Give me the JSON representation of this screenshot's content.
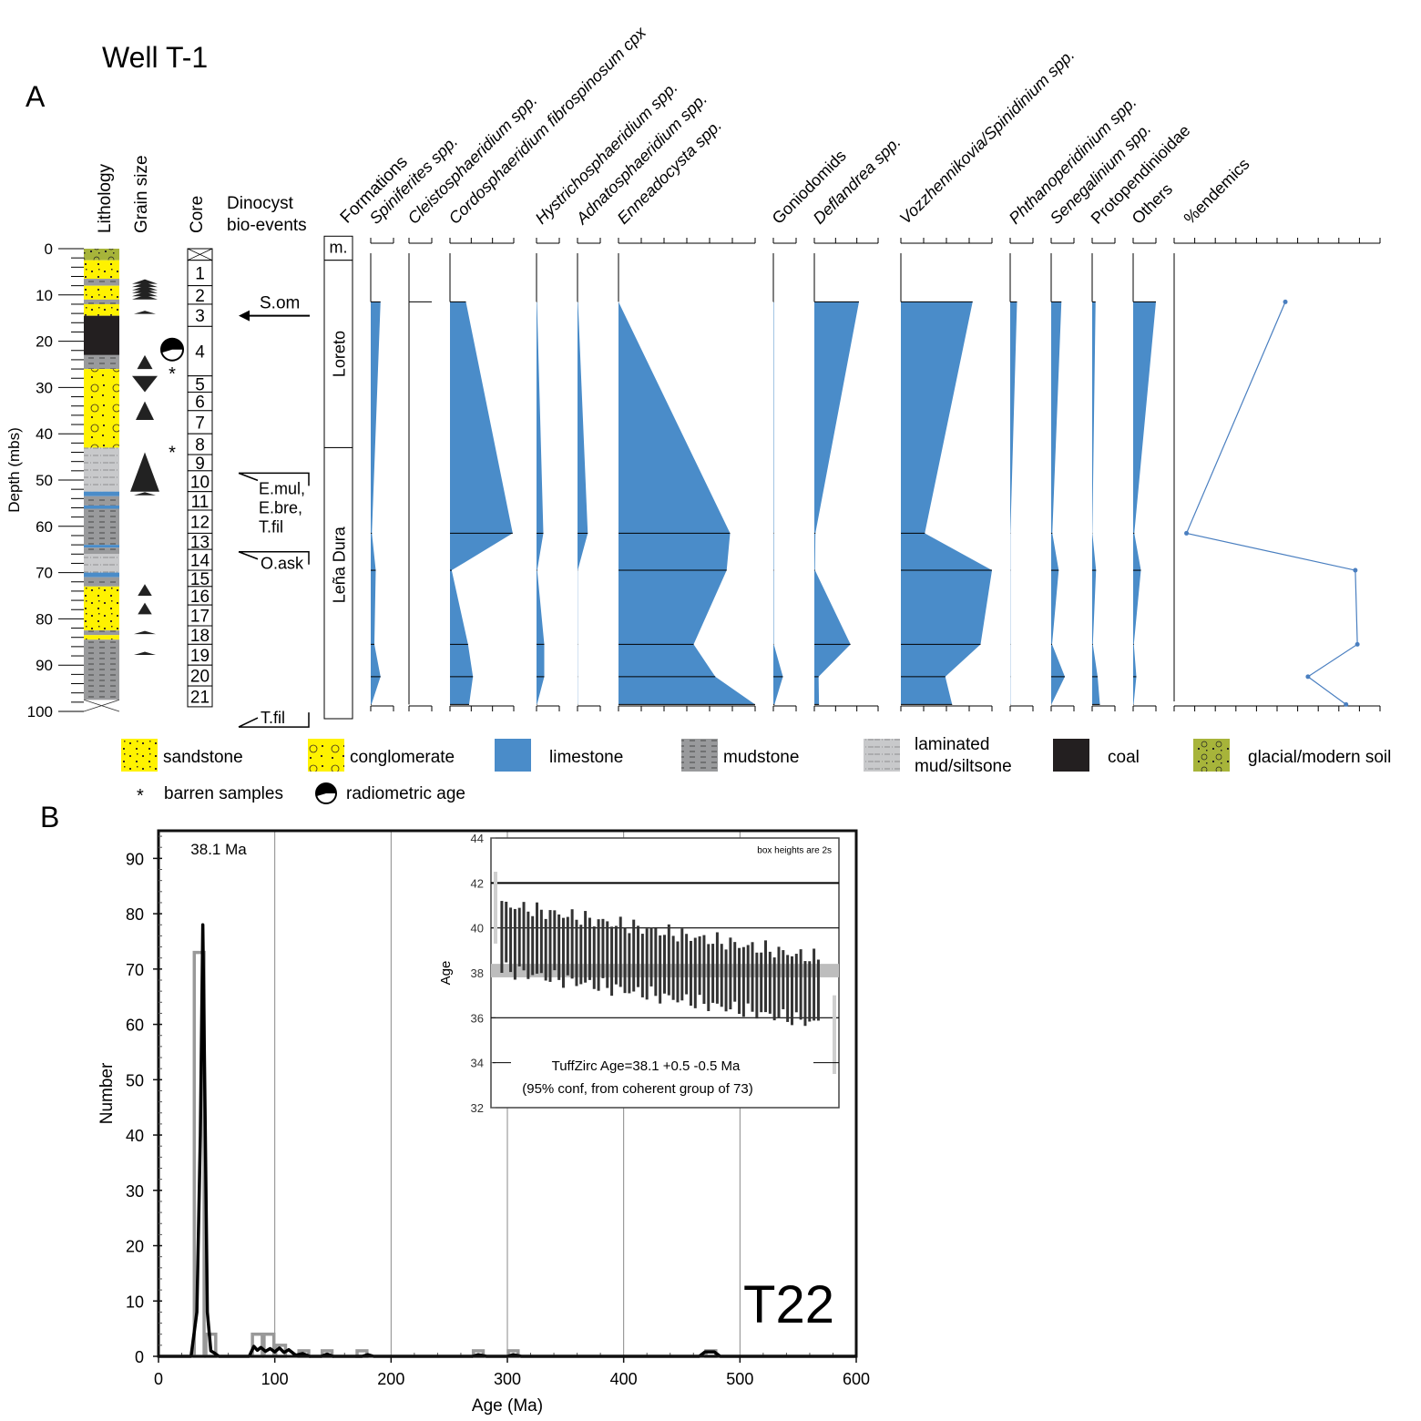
{
  "title": "Well T-1",
  "panel_a_label": "A",
  "panel_b_label": "B",
  "colors": {
    "taxa_fill": "#4a8cc9",
    "sandstone": "#fff200",
    "conglomerate": "#fff200",
    "limestone": "#4a8cc9",
    "mudstone": "#999a9c",
    "laminated": "#c8c9cb",
    "coal": "#231f20",
    "glacial_soil": "#a7b43a",
    "endemics_line": "#4a7fc0",
    "hist_gray": "#999999",
    "curve_black": "#000000",
    "bar_dark": "#333333"
  },
  "chart_data": [
    {
      "type": "area",
      "title": "Well T-1",
      "ylabel": "Depth (mbs)",
      "ylim": [
        0,
        100
      ],
      "yticks": [
        0,
        10,
        20,
        30,
        40,
        50,
        60,
        70,
        80,
        90,
        100
      ],
      "column_headers": {
        "lithology": "Lithology",
        "grain_size": "Grain size",
        "core": "Core",
        "bioevents": "Dinocyst bio-events",
        "bioevents_line1": "Dinocyst",
        "bioevents_line2": "bio-events",
        "formations": "Formations"
      },
      "lithology": [
        {
          "top": 0,
          "base": 2.5,
          "type": "glacial_soil"
        },
        {
          "top": 2.5,
          "base": 6.5,
          "type": "sandstone"
        },
        {
          "top": 6.5,
          "base": 8,
          "type": "mudstone"
        },
        {
          "top": 8,
          "base": 11,
          "type": "sandstone"
        },
        {
          "top": 11,
          "base": 12,
          "type": "mudstone"
        },
        {
          "top": 12,
          "base": 14.5,
          "type": "sandstone"
        },
        {
          "top": 14.5,
          "base": 23,
          "type": "coal"
        },
        {
          "top": 23,
          "base": 26,
          "type": "mudstone"
        },
        {
          "top": 26,
          "base": 43,
          "type": "conglomerate"
        },
        {
          "top": 43,
          "base": 52.5,
          "type": "laminated"
        },
        {
          "top": 52.5,
          "base": 53.5,
          "type": "limestone"
        },
        {
          "top": 53.5,
          "base": 55.5,
          "type": "mudstone"
        },
        {
          "top": 55.5,
          "base": 56.2,
          "type": "limestone"
        },
        {
          "top": 56.2,
          "base": 64,
          "type": "mudstone"
        },
        {
          "top": 64,
          "base": 64.6,
          "type": "limestone"
        },
        {
          "top": 64.6,
          "base": 66,
          "type": "mudstone"
        },
        {
          "top": 66,
          "base": 70,
          "type": "laminated"
        },
        {
          "top": 70,
          "base": 71,
          "type": "limestone"
        },
        {
          "top": 71,
          "base": 73,
          "type": "mudstone"
        },
        {
          "top": 73,
          "base": 82.5,
          "type": "sandstone"
        },
        {
          "top": 82.5,
          "base": 83.5,
          "type": "mudstone"
        },
        {
          "top": 83.5,
          "base": 84.5,
          "type": "sandstone"
        },
        {
          "top": 84.5,
          "base": 97.5,
          "type": "mudstone"
        }
      ],
      "grain_size": [
        {
          "depth": 8,
          "size": 0.6,
          "shape": "stack"
        },
        {
          "depth": 10,
          "size": 0.6,
          "shape": "stack"
        },
        {
          "depth": 13.8,
          "size": 0.35,
          "shape": "sliver"
        },
        {
          "top": 23,
          "base": 26,
          "shape": "up"
        },
        {
          "top": 27.5,
          "base": 31,
          "shape": "down"
        },
        {
          "top": 33,
          "base": 37,
          "shape": "up"
        },
        {
          "top": 44,
          "base": 52.5,
          "shape": "up"
        },
        {
          "depth": 53,
          "size": 0.5,
          "shape": "sliver"
        },
        {
          "top": 72.5,
          "base": 75,
          "shape": "up"
        },
        {
          "top": 76.5,
          "base": 79,
          "shape": "up"
        },
        {
          "depth": 83,
          "size": 0.4,
          "shape": "sliver"
        },
        {
          "depth": 87.5,
          "size": 0.4,
          "shape": "sliver"
        }
      ],
      "cores": [
        {
          "label": "",
          "top": 0,
          "base": 2.5
        },
        {
          "label": "1",
          "top": 2.5,
          "base": 8
        },
        {
          "label": "2",
          "top": 8,
          "base": 12
        },
        {
          "label": "3",
          "top": 12,
          "base": 16.8
        },
        {
          "label": "4",
          "top": 16.8,
          "base": 27.5
        },
        {
          "label": "5",
          "top": 27.5,
          "base": 31
        },
        {
          "label": "6",
          "top": 31,
          "base": 35
        },
        {
          "label": "7",
          "top": 35,
          "base": 40
        },
        {
          "label": "8",
          "top": 40,
          "base": 44.5
        },
        {
          "label": "9",
          "top": 44.5,
          "base": 48
        },
        {
          "label": "10",
          "top": 48,
          "base": 52.5
        },
        {
          "label": "11",
          "top": 52.5,
          "base": 56.5
        },
        {
          "label": "12",
          "top": 56.5,
          "base": 61.5
        },
        {
          "label": "13",
          "top": 61.5,
          "base": 65
        },
        {
          "label": "14",
          "top": 65,
          "base": 69.5
        },
        {
          "label": "15",
          "top": 69.5,
          "base": 73
        },
        {
          "label": "16",
          "top": 73,
          "base": 77
        },
        {
          "label": "17",
          "top": 77,
          "base": 81.5
        },
        {
          "label": "18",
          "top": 81.5,
          "base": 85.5
        },
        {
          "label": "19",
          "top": 85.5,
          "base": 90
        },
        {
          "label": "20",
          "top": 90,
          "base": 94.5
        },
        {
          "label": "21",
          "top": 94.5,
          "base": 99
        }
      ],
      "radiometric_age_depth": 21.8,
      "barren_samples_depths": [
        26,
        43
      ],
      "barren_symbol": "*",
      "bioevents": [
        {
          "label": "S.om",
          "depth": 14.5,
          "kind": "arrow"
        },
        {
          "label_lines": [
            "E.mul,",
            "E.bre,",
            "T.fil"
          ],
          "depth": 48.5,
          "kind": "bracket-down"
        },
        {
          "label": "O.ask",
          "depth": 65.5,
          "kind": "bracket-down"
        },
        {
          "label": "T.fil",
          "depth": 101,
          "kind": "bracket-up"
        }
      ],
      "formations": [
        {
          "label": "m.",
          "top": -2.7,
          "base": 2.5
        },
        {
          "label": "Loreto",
          "top": 2.5,
          "base": 43
        },
        {
          "label": "Leña Dura",
          "top": 43,
          "base": 100
        }
      ],
      "sample_depths": [
        11.5,
        61.5,
        69.5,
        85.5,
        92.5,
        98.5
      ],
      "taxa": [
        {
          "name": "Spiniferites spp.",
          "italic": true,
          "scale_max": 10,
          "ticks": 1,
          "values": [
            4.3,
            0.5,
            2.2,
            1.6,
            4.3,
            0.3
          ]
        },
        {
          "name": "Cleistosphaeridium spp.",
          "italic": true,
          "scale_max": 10,
          "ticks": 1,
          "values": [
            6.0,
            0,
            0,
            0,
            0,
            0
          ],
          "line_only": true
        },
        {
          "name": "Cordosphaeridium fibrospinosum cpx",
          "italic": true,
          "scale_max": 30,
          "ticks": 3,
          "values": [
            7.5,
            29.5,
            0.8,
            8.5,
            10.8,
            9.0
          ]
        },
        {
          "name": "Hystrichosphaeridium spp.",
          "italic": true,
          "scale_max": 10,
          "ticks": 1,
          "values": [
            0.2,
            3.0,
            0.3,
            3.4,
            3.4,
            0.2
          ]
        },
        {
          "name": "Adnatosphaeridium spp.",
          "italic": true,
          "scale_max": 10,
          "ticks": 1,
          "values": [
            0.2,
            4.5,
            0.1,
            0.1,
            0.1,
            0.1
          ]
        },
        {
          "name": "Enneadocysta spp.",
          "italic": true,
          "scale_max": 60,
          "ticks": 6,
          "values": [
            0,
            49,
            47.5,
            33,
            42.5,
            60
          ]
        },
        {
          "name": "Goniodomids",
          "italic": false,
          "scale_max": 10,
          "ticks": 1,
          "values": [
            0.2,
            0.2,
            0.2,
            0.2,
            4.2,
            0.5
          ]
        },
        {
          "name": "Deflandrea spp.",
          "italic": true,
          "scale_max": 30,
          "ticks": 3,
          "values": [
            21,
            0.5,
            0.3,
            17,
            2,
            2.2
          ]
        },
        {
          "name": "Vozzhennikovia/Spinidinium spp.",
          "italic": true,
          "scale_max": 40,
          "ticks": 4,
          "values": [
            31.5,
            10.5,
            40,
            35,
            19.5,
            22.5
          ]
        },
        {
          "name": "Phthanoperidinium spp.",
          "italic": true,
          "scale_max": 10,
          "ticks": 1,
          "values": [
            3.0,
            0.1,
            0.1,
            0.1,
            0.1,
            0.1
          ]
        },
        {
          "name": "Senegalinium spp.",
          "italic": true,
          "scale_max": 10,
          "ticks": 1,
          "values": [
            4.5,
            0.5,
            3.3,
            0.4,
            6.0,
            0.1
          ]
        },
        {
          "name": "Protopendinioidae",
          "italic": false,
          "scale_max": 10,
          "ticks": 1,
          "values": [
            1.5,
            0.1,
            1.7,
            0.3,
            2.4,
            3.4
          ]
        },
        {
          "name": "Others",
          "italic": false,
          "scale_max": 10,
          "ticks": 1,
          "values": [
            10.0,
            0.5,
            3.4,
            0.3,
            1.4,
            0.2
          ]
        }
      ],
      "endemics": {
        "name": "%endemics",
        "scale_max": 100,
        "ticks": 10,
        "values": [
          54,
          6,
          88,
          89,
          65,
          83.5
        ]
      }
    },
    {
      "type": "line",
      "title": "T22",
      "xlabel": "Age (Ma)",
      "ylabel": "Number",
      "xlim": [
        0,
        600
      ],
      "ylim": [
        0,
        95
      ],
      "xticks": [
        0,
        100,
        200,
        300,
        400,
        500,
        600
      ],
      "yticks": [
        0,
        10,
        20,
        30,
        40,
        50,
        60,
        70,
        80,
        90
      ],
      "grid": true,
      "annotation": "38.1 Ma",
      "histogram": {
        "name": "histogram",
        "bins": [
          {
            "x0": 30,
            "x1": 40,
            "count": 73
          },
          {
            "x0": 40,
            "x1": 50,
            "count": 4
          },
          {
            "x0": 80,
            "x1": 90,
            "count": 4
          },
          {
            "x0": 90,
            "x1": 100,
            "count": 4
          },
          {
            "x0": 100,
            "x1": 110,
            "count": 2
          },
          {
            "x0": 120,
            "x1": 130,
            "count": 1
          },
          {
            "x0": 140,
            "x1": 150,
            "count": 1
          },
          {
            "x0": 170,
            "x1": 180,
            "count": 1
          },
          {
            "x0": 270,
            "x1": 280,
            "count": 1
          },
          {
            "x0": 300,
            "x1": 310,
            "count": 1
          },
          {
            "x0": 470,
            "x1": 480,
            "count": 1
          }
        ]
      },
      "probability_curve": {
        "name": "relative probability",
        "x": [
          0,
          28,
          33,
          36,
          38.1,
          40,
          42,
          45,
          48,
          52,
          78,
          82,
          85,
          88,
          92,
          96,
          100,
          104,
          108,
          112,
          118,
          124,
          130,
          140,
          145,
          150,
          175,
          180,
          185,
          270,
          275,
          282,
          300,
          305,
          312,
          465,
          470,
          478,
          483,
          600
        ],
        "y": [
          0,
          0,
          8,
          40,
          78,
          45,
          8,
          1,
          0.6,
          0,
          0,
          1.8,
          1.1,
          1.6,
          0.9,
          1.4,
          0.8,
          1.5,
          0.7,
          1.2,
          0.2,
          0.5,
          0,
          0,
          0.4,
          0,
          0,
          0.3,
          0,
          0,
          0.3,
          0,
          0,
          0.3,
          0,
          0,
          0.8,
          0.8,
          0,
          0
        ]
      },
      "inset": {
        "ylabel": "Age",
        "ylim": [
          32,
          44
        ],
        "yticks": [
          32,
          34,
          36,
          38,
          40,
          42,
          44
        ],
        "note": "box heights are 2s",
        "result_line1": "TuffZirc Age=38.1  +0.5  -0.5 Ma",
        "result_line2": "(95% conf, from coherent group of 73)",
        "tuffzirc_age": 38.1,
        "n_bars": 73
      }
    }
  ],
  "legend": {
    "items": [
      {
        "key": "sandstone",
        "label": "sandstone"
      },
      {
        "key": "conglomerate",
        "label": "conglomerate"
      },
      {
        "key": "limestone",
        "label": "limestone"
      },
      {
        "key": "mudstone",
        "label": "mudstone"
      },
      {
        "key": "laminated",
        "label_line1": "laminated",
        "label_line2": "mud/siltsone"
      },
      {
        "key": "coal",
        "label": "coal"
      },
      {
        "key": "glacial_soil",
        "label": "glacial/modern soil"
      }
    ],
    "barren_label": "barren samples",
    "radiometric_label": "radiometric age"
  }
}
